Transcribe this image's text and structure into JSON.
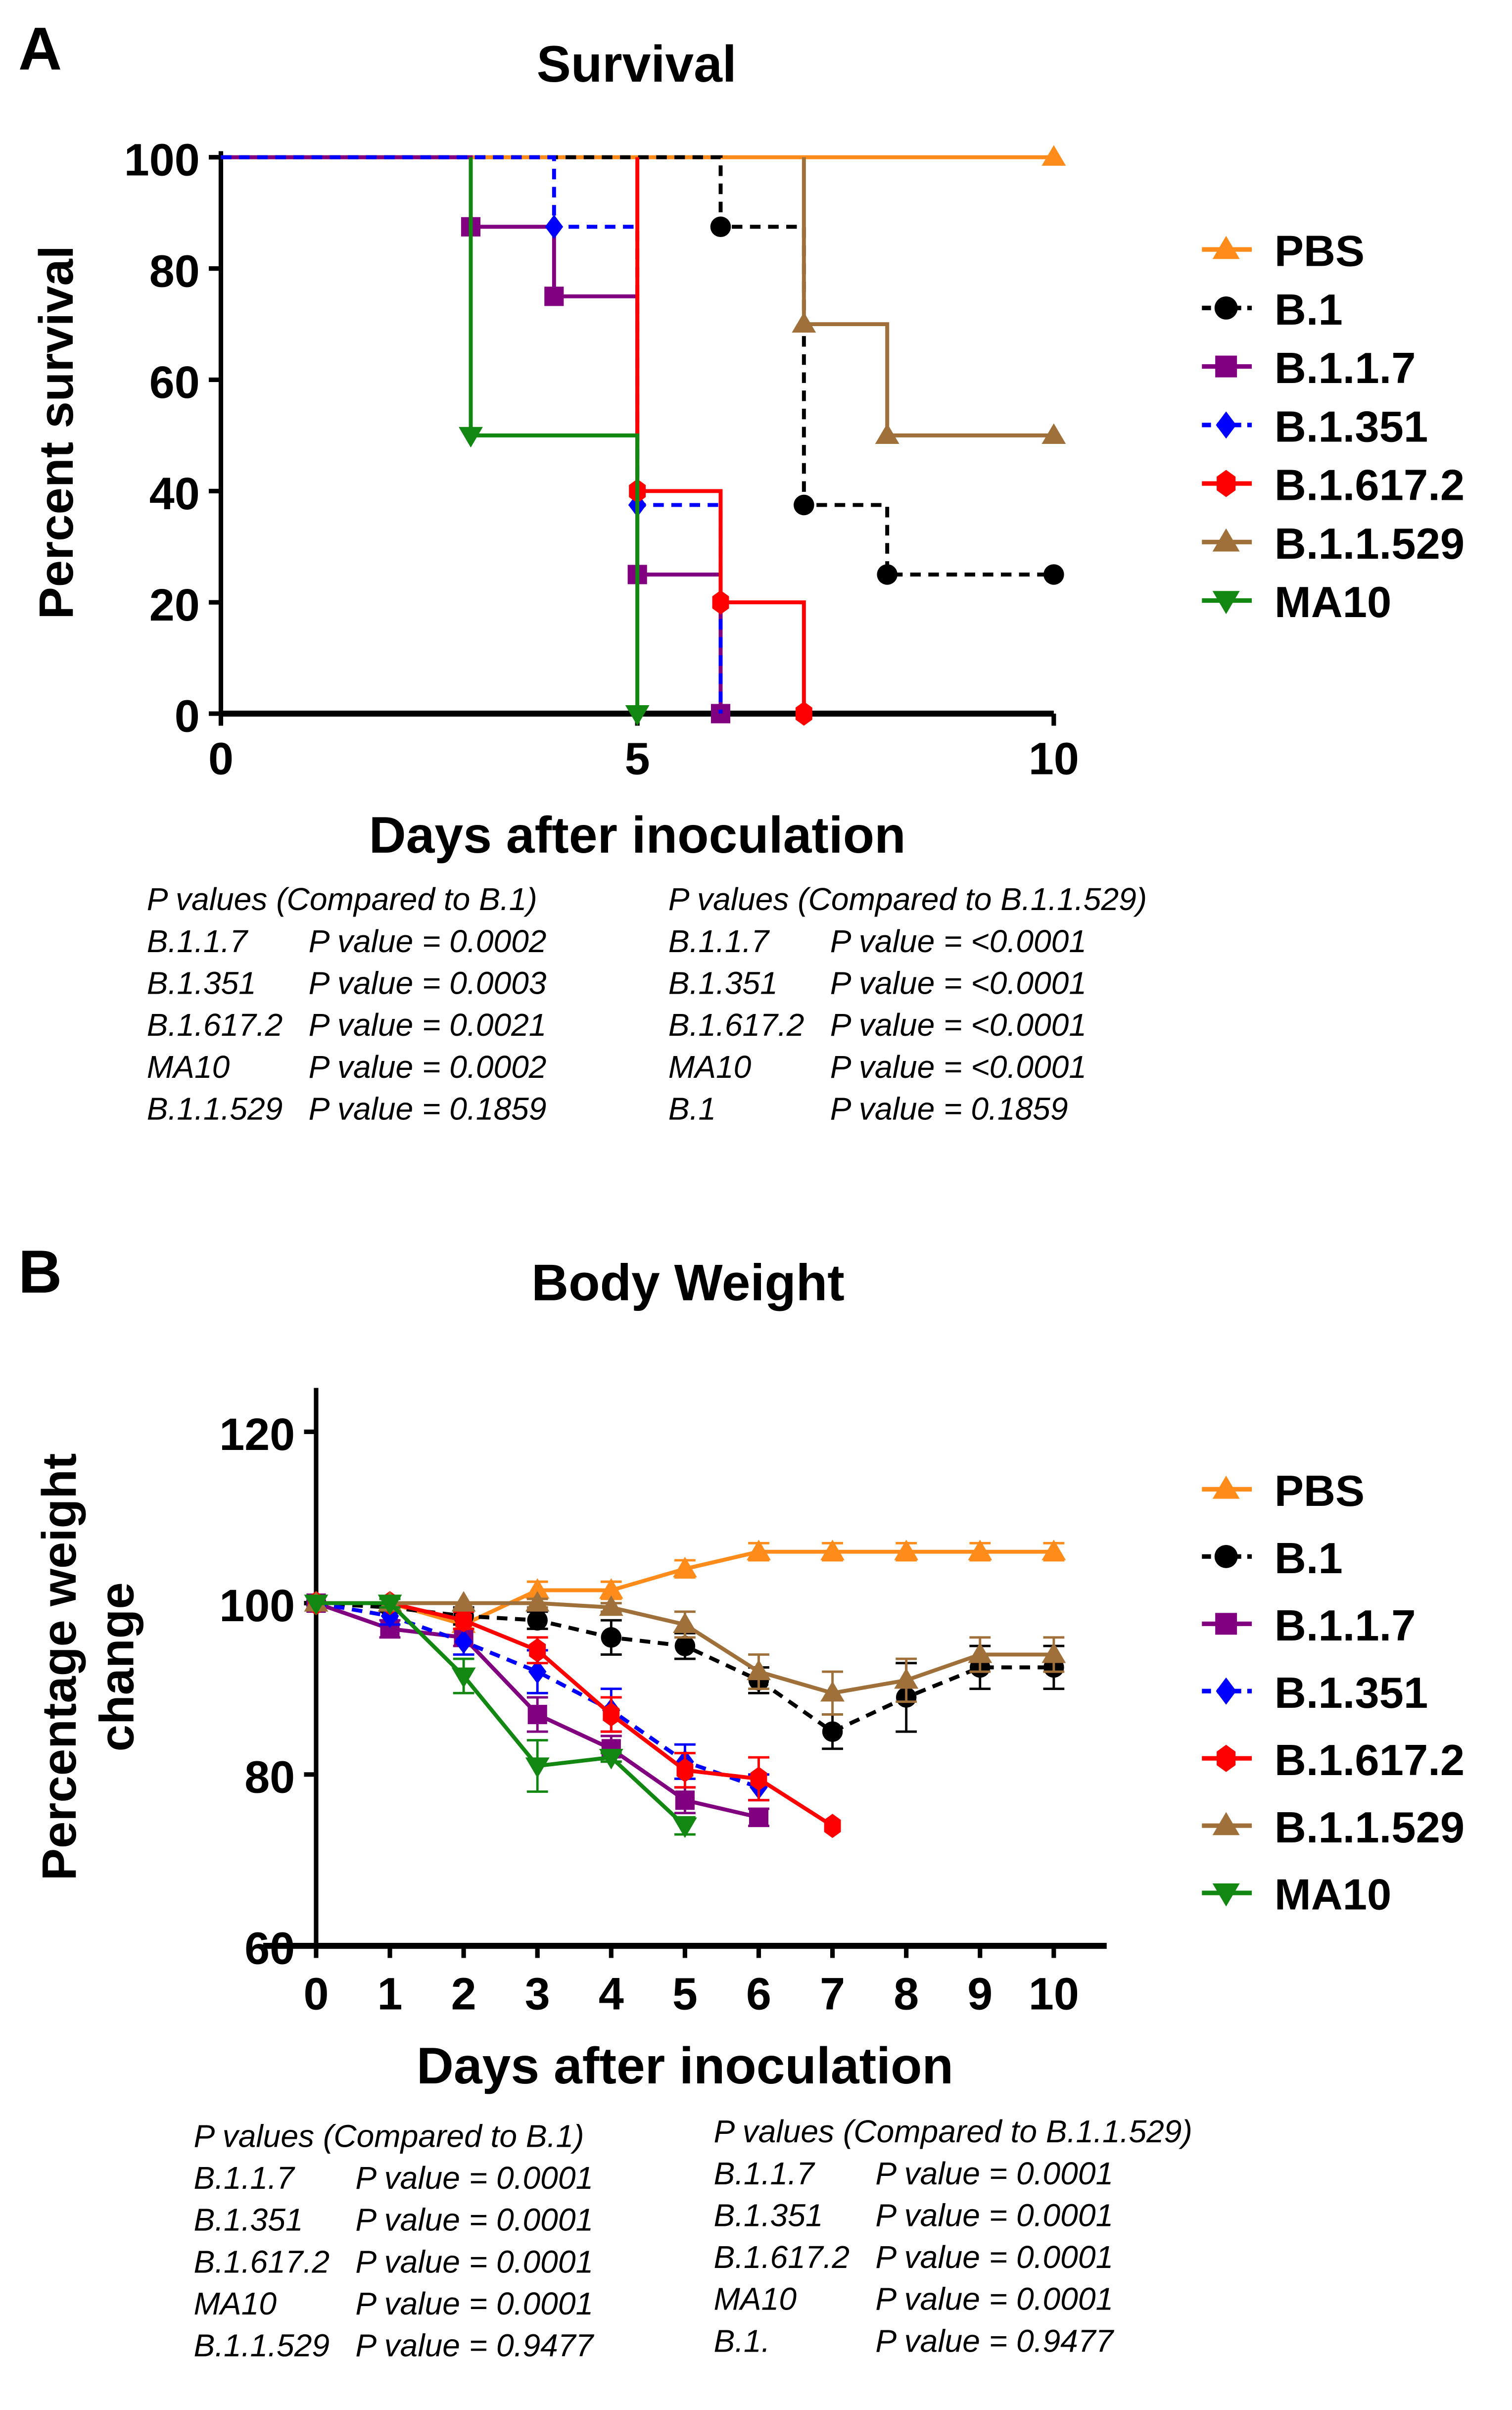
{
  "chart_data": [
    {
      "panel": "A",
      "type": "line",
      "title": "Survival",
      "xlabel": "Days after inoculation",
      "ylabel": "Percent survival",
      "xlim": [
        0,
        10
      ],
      "ylim": [
        0,
        100
      ],
      "xticks": [
        0,
        5,
        10
      ],
      "yticks": [
        0,
        20,
        40,
        60,
        80,
        100
      ],
      "step": true,
      "legend": "right",
      "series": [
        {
          "name": "PBS",
          "color": "#ff8c1a",
          "marker": "triangle",
          "dash": false,
          "points": [
            [
              0,
              100
            ],
            [
              10,
              100
            ]
          ],
          "markers": [
            [
              10,
              100
            ]
          ]
        },
        {
          "name": "B.1",
          "color": "#000000",
          "marker": "circle",
          "dash": true,
          "points": [
            [
              0,
              100
            ],
            [
              6,
              100
            ],
            [
              6,
              87.5
            ],
            [
              7,
              87.5
            ],
            [
              7,
              37.5
            ],
            [
              8,
              37.5
            ],
            [
              8,
              25
            ],
            [
              10,
              25
            ]
          ],
          "markers": [
            [
              6,
              87.5
            ],
            [
              7,
              37.5
            ],
            [
              8,
              25
            ],
            [
              10,
              25
            ]
          ]
        },
        {
          "name": "B.1.1.7",
          "color": "#800080",
          "marker": "square",
          "dash": false,
          "points": [
            [
              0,
              100
            ],
            [
              3,
              100
            ],
            [
              3,
              87.5
            ],
            [
              4,
              87.5
            ],
            [
              4,
              75
            ],
            [
              5,
              75
            ],
            [
              5,
              25
            ],
            [
              6,
              25
            ],
            [
              6,
              0
            ]
          ],
          "markers": [
            [
              3,
              87.5
            ],
            [
              4,
              75
            ],
            [
              5,
              25
            ],
            [
              6,
              0
            ]
          ]
        },
        {
          "name": "B.1.351",
          "color": "#0000ff",
          "marker": "diamond",
          "dash": true,
          "points": [
            [
              0,
              100
            ],
            [
              4,
              100
            ],
            [
              4,
              87.5
            ],
            [
              5,
              87.5
            ],
            [
              5,
              37.5
            ],
            [
              6,
              37.5
            ],
            [
              6,
              0
            ]
          ],
          "markers": [
            [
              4,
              87.5
            ],
            [
              5,
              37.5
            ]
          ]
        },
        {
          "name": "B.1.617.2",
          "color": "#ff0000",
          "marker": "hexagon",
          "dash": false,
          "points": [
            [
              5,
              100
            ],
            [
              5,
              40
            ],
            [
              6,
              40
            ],
            [
              6,
              20
            ],
            [
              7,
              20
            ],
            [
              7,
              0
            ]
          ],
          "markers": [
            [
              5,
              40
            ],
            [
              6,
              20
            ],
            [
              7,
              0
            ]
          ]
        },
        {
          "name": "B.1.1.529",
          "color": "#a0703a",
          "marker": "triangle",
          "dash": false,
          "points": [
            [
              7,
              100
            ],
            [
              7,
              70
            ],
            [
              8,
              70
            ],
            [
              8,
              50
            ],
            [
              10,
              50
            ]
          ],
          "markers": [
            [
              7,
              70
            ],
            [
              8,
              50
            ],
            [
              10,
              50
            ]
          ]
        },
        {
          "name": "MA10",
          "color": "#128712",
          "marker": "triangle-down",
          "dash": false,
          "points": [
            [
              3,
              100
            ],
            [
              3,
              50
            ],
            [
              5,
              50
            ],
            [
              5,
              0
            ]
          ],
          "markers": [
            [
              3,
              50
            ],
            [
              5,
              0
            ]
          ]
        }
      ],
      "pvalues": [
        {
          "header": "P values (Compared to B.1)",
          "rows": [
            [
              "B.1.1.7",
              "P value = 0.0002"
            ],
            [
              "B.1.351",
              "P value = 0.0003"
            ],
            [
              "B.1.617.2",
              "P value = 0.0021"
            ],
            [
              "MA10",
              "P value = 0.0002"
            ],
            [
              "B.1.1.529",
              "P value = 0.1859"
            ]
          ]
        },
        {
          "header": "P values (Compared to B.1.1.529)",
          "rows": [
            [
              "B.1.1.7",
              "P value = <0.0001"
            ],
            [
              "B.1.351",
              "P value = <0.0001"
            ],
            [
              "B.1.617.2",
              "P value = <0.0001"
            ],
            [
              "MA10",
              "P value = <0.0001"
            ],
            [
              "B.1",
              "P value =   0.1859"
            ]
          ]
        }
      ]
    },
    {
      "panel": "B",
      "type": "line",
      "title": "Body Weight",
      "xlabel": "Days after inoculation",
      "ylabel": "Percentage weight change",
      "xlim": [
        0,
        10
      ],
      "ylim": [
        60,
        120
      ],
      "xticks": [
        0,
        1,
        2,
        3,
        4,
        5,
        6,
        7,
        8,
        9,
        10
      ],
      "yticks": [
        60,
        80,
        100,
        120
      ],
      "legend": "right",
      "series": [
        {
          "name": "PBS",
          "color": "#ff8c1a",
          "marker": "triangle",
          "dash": false,
          "x": [
            0,
            1,
            2,
            3,
            4,
            5,
            6,
            7,
            8,
            9,
            10
          ],
          "y": [
            100,
            100,
            97.5,
            101.5,
            101.5,
            104,
            106,
            106,
            106,
            106,
            106
          ],
          "err": [
            0,
            0,
            0,
            1,
            1,
            1,
            1,
            1,
            1,
            1,
            1
          ]
        },
        {
          "name": "B.1",
          "color": "#000000",
          "marker": "circle",
          "dash": true,
          "x": [
            0,
            1,
            2,
            3,
            4,
            5,
            6,
            7,
            8,
            9,
            10
          ],
          "y": [
            100,
            99.5,
            98.5,
            98,
            96,
            95,
            91,
            85,
            89,
            92.5,
            92.5
          ],
          "err": [
            0,
            0.5,
            1,
            1,
            2,
            1.5,
            1.5,
            2,
            4,
            2.5,
            2.5
          ]
        },
        {
          "name": "B.1.1.7",
          "color": "#800080",
          "marker": "square",
          "dash": false,
          "x": [
            0,
            1,
            2,
            3,
            4,
            5,
            6
          ],
          "y": [
            100,
            97,
            96,
            87,
            83,
            77,
            75
          ],
          "err": [
            0,
            1,
            1,
            2,
            1.5,
            1.5,
            1
          ]
        },
        {
          "name": "B.1.351",
          "color": "#0000ff",
          "marker": "diamond",
          "dash": true,
          "x": [
            0,
            1,
            2,
            3,
            4,
            5,
            6
          ],
          "y": [
            100,
            98.5,
            95.5,
            92,
            87.5,
            81.5,
            78.5
          ],
          "err": [
            0,
            1,
            1.5,
            2.5,
            2.5,
            2,
            1.5
          ]
        },
        {
          "name": "B.1.617.2",
          "color": "#ff0000",
          "marker": "hexagon",
          "dash": false,
          "x": [
            0,
            1,
            2,
            3,
            4,
            5,
            6,
            7
          ],
          "y": [
            100,
            100,
            98,
            94.5,
            87,
            80.5,
            79.5,
            74
          ],
          "err": [
            0,
            0,
            1,
            1.5,
            2,
            2,
            2.5,
            0
          ]
        },
        {
          "name": "B.1.1.529",
          "color": "#a0703a",
          "marker": "triangle",
          "dash": false,
          "x": [
            0,
            1,
            2,
            3,
            4,
            5,
            6,
            7,
            8,
            9,
            10
          ],
          "y": [
            100,
            100,
            100,
            100,
            99.5,
            97.5,
            92,
            89.5,
            91,
            94,
            94
          ],
          "err": [
            0,
            0,
            0,
            0.5,
            0.5,
            1.5,
            2,
            2.5,
            2.5,
            2,
            2
          ]
        },
        {
          "name": "MA10",
          "color": "#128712",
          "marker": "triangle-down",
          "dash": false,
          "x": [
            0,
            1,
            2,
            3,
            4,
            5
          ],
          "y": [
            100,
            100,
            91.5,
            81,
            82,
            74
          ],
          "err": [
            0,
            0.5,
            2,
            3,
            0.5,
            1
          ]
        }
      ],
      "pvalues": [
        {
          "header": "P values (Compared to B.1)",
          "rows": [
            [
              "B.1.1.7",
              "P value = 0.0001"
            ],
            [
              "B.1.351",
              "P value = 0.0001"
            ],
            [
              "B.1.617.2",
              "P value = 0.0001"
            ],
            [
              "MA10",
              "P value = 0.0001"
            ],
            [
              "B.1.1.529",
              "P value = 0.9477"
            ]
          ]
        },
        {
          "header": "P values (Compared to B.1.1.529)",
          "rows": [
            [
              "B.1.1.7",
              "P value = 0.0001"
            ],
            [
              "B.1.351",
              "P value = 0.0001"
            ],
            [
              "B.1.617.2",
              "P value = 0.0001"
            ],
            [
              "MA10",
              "P value = 0.0001"
            ],
            [
              "B.1.",
              "P value = 0.9477"
            ]
          ]
        }
      ]
    }
  ]
}
